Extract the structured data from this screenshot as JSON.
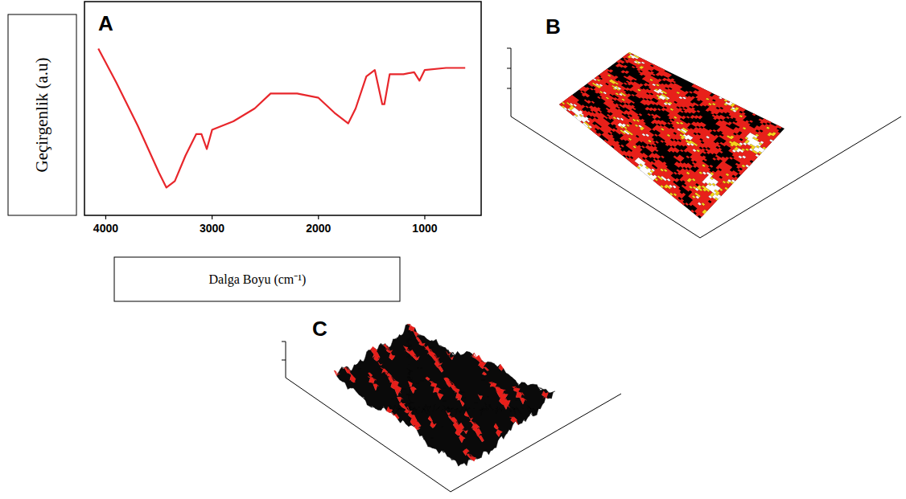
{
  "chart_data": {
    "type": "line",
    "title": "A",
    "xlabel": "Dalga Boyu (cm⁻¹)",
    "ylabel": "Geçirgenlik (a.u)",
    "x": [
      4070,
      3900,
      3700,
      3500,
      3430,
      3350,
      3250,
      3150,
      3100,
      3050,
      3000,
      2800,
      2600,
      2450,
      2200,
      2000,
      1850,
      1720,
      1650,
      1550,
      1470,
      1400,
      1380,
      1330,
      1200,
      1100,
      1050,
      1000,
      800,
      620
    ],
    "values": [
      78,
      62,
      42,
      20,
      13,
      16,
      28,
      38,
      38,
      31,
      40,
      44,
      50,
      57,
      57,
      55,
      48,
      43,
      50,
      65,
      68,
      52,
      52,
      66,
      66,
      67,
      63,
      68,
      69,
      69
    ],
    "color": "#e8262b",
    "xlim": [
      4200,
      470
    ],
    "xticks": [
      4000,
      3000,
      2000,
      1000
    ],
    "ylim": [
      0,
      100
    ],
    "tick_labels": "x",
    "grid": false
  },
  "panels": [
    {
      "label": "B"
    },
    {
      "label": "C"
    }
  ]
}
